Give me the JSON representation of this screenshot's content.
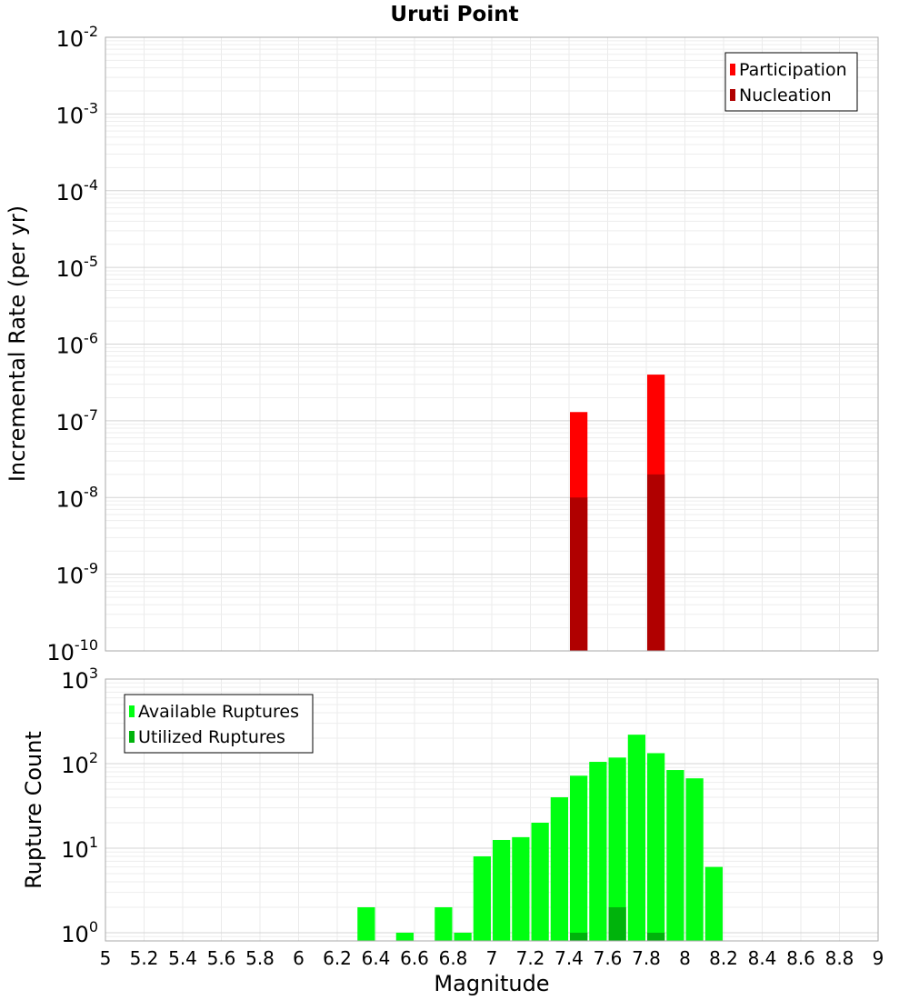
{
  "chart_data": [
    {
      "type": "bar",
      "title": "Uruti Point",
      "xlabel": "",
      "ylabel": "Incremental Rate (per yr)",
      "x_axis": {
        "range": [
          5,
          9
        ]
      },
      "y_axis": {
        "scale": "log",
        "range": [
          1e-10,
          0.01
        ],
        "tick_labels": [
          "10^-10",
          "10^-9",
          "10^-8",
          "10^-7",
          "10^-6",
          "10^-5",
          "10^-4",
          "10^-3",
          "10^-2"
        ]
      },
      "grid": true,
      "legend": {
        "placement": "top-right"
      },
      "bar_width": 0.1,
      "series": [
        {
          "name": "Participation",
          "color": "#ff0000",
          "x": [
            7.45,
            7.85
          ],
          "values": [
            1.3e-07,
            4e-07
          ]
        },
        {
          "name": "Nucleation",
          "color": "#b00000",
          "x": [
            7.45,
            7.85
          ],
          "values": [
            1e-08,
            2e-08
          ]
        }
      ]
    },
    {
      "type": "bar",
      "title": "",
      "xlabel": "Magnitude",
      "ylabel": "Rupture Count",
      "x_axis": {
        "range": [
          5,
          9
        ],
        "ticks": [
          "5",
          "5.2",
          "5.4",
          "5.6",
          "5.8",
          "6",
          "6.2",
          "6.4",
          "6.6",
          "6.8",
          "7",
          "7.2",
          "7.4",
          "7.6",
          "7.8",
          "8",
          "8.2",
          "8.4",
          "8.6",
          "8.8",
          "9"
        ]
      },
      "y_axis": {
        "scale": "log",
        "range": [
          0.8,
          1000
        ],
        "tick_labels": [
          "10^0",
          "10^1",
          "10^2",
          "10^3"
        ]
      },
      "grid": true,
      "legend": {
        "placement": "top-left"
      },
      "bar_width": 0.1,
      "series": [
        {
          "name": "Available Ruptures",
          "color": "#00ff11",
          "x": [
            6.35,
            6.55,
            6.75,
            6.85,
            6.95,
            7.05,
            7.15,
            7.25,
            7.35,
            7.45,
            7.55,
            7.65,
            7.75,
            7.85,
            7.95,
            8.05,
            8.15
          ],
          "values": [
            2,
            1,
            2,
            1,
            8,
            12.5,
            13.5,
            20,
            40,
            72,
            105,
            118,
            220,
            133,
            84,
            67,
            6
          ]
        },
        {
          "name": "Utilized Ruptures",
          "color": "#00b30c",
          "x": [
            7.45,
            7.65,
            7.85
          ],
          "values": [
            1,
            2,
            1
          ]
        }
      ]
    }
  ]
}
